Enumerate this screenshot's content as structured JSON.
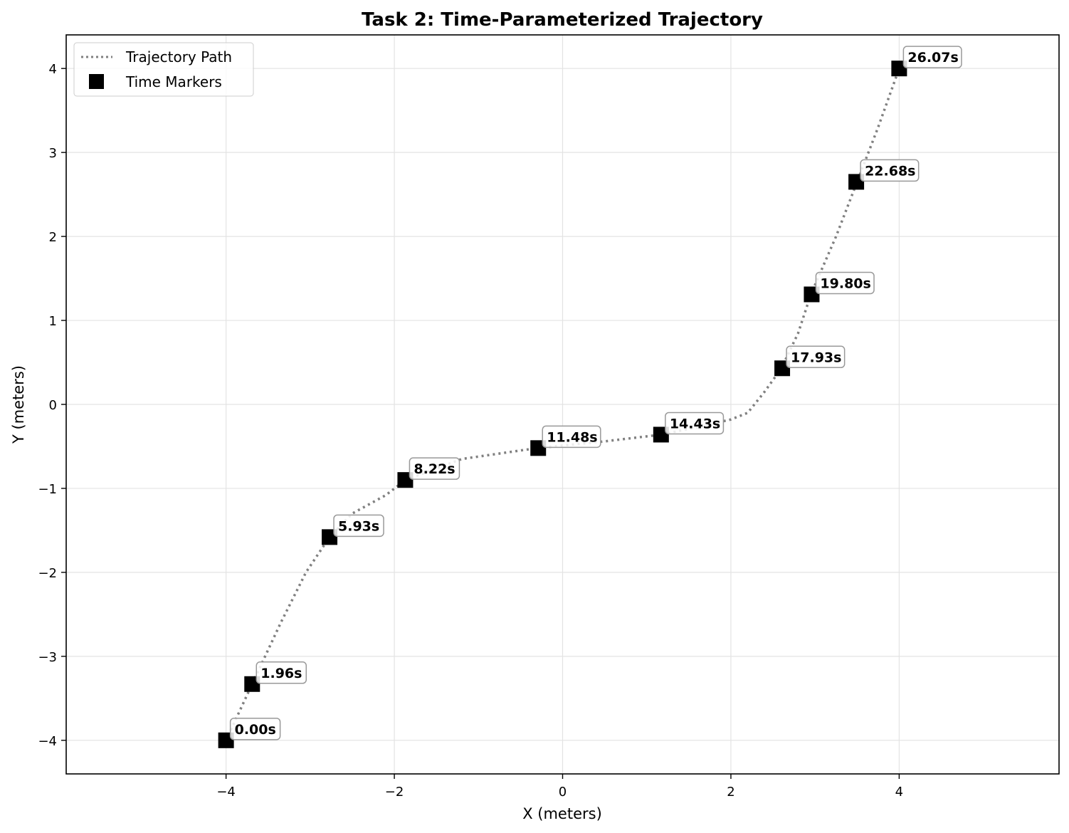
{
  "chart_data": {
    "type": "scatter",
    "title": "Task 2: Time-Parameterized Trajectory",
    "xlabel": "X (meters)",
    "ylabel": "Y (meters)",
    "xlim": [
      -5.9,
      5.9
    ],
    "ylim": [
      -4.4,
      4.4
    ],
    "x_ticks": [
      -4,
      -2,
      0,
      2,
      4
    ],
    "y_ticks": [
      -4,
      -3,
      -2,
      -1,
      0,
      1,
      2,
      3,
      4
    ],
    "x_tick_labels": [
      "−4",
      "−2",
      "0",
      "2",
      "4"
    ],
    "y_tick_labels": [
      "−4",
      "−3",
      "−2",
      "−1",
      "0",
      "1",
      "2",
      "3",
      "4"
    ],
    "grid": true,
    "legend_position": "top-left",
    "series": [
      {
        "name": "Trajectory Path",
        "style": "dotted-line",
        "color": "#808080",
        "x": [
          -4.0,
          -3.69,
          -3.35,
          -3.05,
          -2.77,
          -2.5,
          -2.1,
          -1.87,
          -1.2,
          -0.3,
          0.5,
          1.17,
          1.6,
          2.0,
          2.2,
          2.4,
          2.6,
          2.8,
          2.95,
          3.25,
          3.5,
          3.75,
          4.0
        ],
        "y": [
          -4.0,
          -3.33,
          -2.6,
          -2.0,
          -1.58,
          -1.3,
          -1.08,
          -0.9,
          -0.65,
          -0.52,
          -0.44,
          -0.36,
          -0.27,
          -0.18,
          -0.1,
          0.15,
          0.43,
          0.85,
          1.31,
          2.0,
          2.65,
          3.3,
          4.0
        ]
      },
      {
        "name": "Time Markers",
        "style": "square-marker",
        "color": "#000000",
        "x": [
          -4.0,
          -3.69,
          -2.77,
          -1.87,
          -0.29,
          1.17,
          2.61,
          2.96,
          3.49,
          4.0
        ],
        "y": [
          -4.0,
          -3.33,
          -1.58,
          -0.9,
          -0.52,
          -0.36,
          0.43,
          1.31,
          2.65,
          4.0
        ],
        "labels": [
          "0.00s",
          "1.96s",
          "5.93s",
          "8.22s",
          "11.48s",
          "14.43s",
          "17.93s",
          "19.80s",
          "22.68s",
          "26.07s"
        ]
      }
    ]
  }
}
